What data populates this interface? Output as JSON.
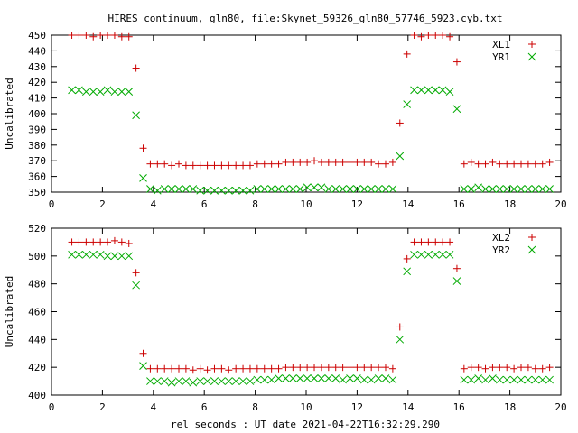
{
  "page_title": "HIRES continuum, gln80, file:Skynet_59326_gln80_57746_5923.cyb.txt",
  "xlabel": "rel seconds : UT date 2021-04-22T16:32:29.290",
  "colors": {
    "red": "#cc0000",
    "green": "#00aa00",
    "axis": "#000000"
  },
  "chart_data": [
    {
      "type": "scatter",
      "title": "HIRES continuum, gln80, file:Skynet_59326_gln80_57746_5923.cyb.txt",
      "xlabel": "",
      "ylabel": "Uncalibrated",
      "xlim": [
        0,
        20
      ],
      "ylim": [
        350,
        450
      ],
      "xticks": [
        "0",
        "2",
        "4",
        "6",
        "8",
        "10",
        "12",
        "14",
        "16",
        "18",
        "20"
      ],
      "yticks": [
        "350",
        "360",
        "370",
        "380",
        "390",
        "400",
        "410",
        "420",
        "430",
        "440",
        "450"
      ],
      "legend": "top-right",
      "grid": false,
      "series": [
        {
          "name": "XL1",
          "marker": "plus",
          "color": "#cc0000",
          "x": [
            0.8,
            1.08,
            1.36,
            1.64,
            1.92,
            2.2,
            2.48,
            2.76,
            3.04,
            3.32,
            3.6,
            3.88,
            4.16,
            4.44,
            4.72,
            5.0,
            5.28,
            5.56,
            5.84,
            6.12,
            6.4,
            6.68,
            6.96,
            7.24,
            7.52,
            7.8,
            8.08,
            8.36,
            8.64,
            8.92,
            9.2,
            9.48,
            9.76,
            10.04,
            10.32,
            10.6,
            10.88,
            11.16,
            11.44,
            11.72,
            12.0,
            12.28,
            12.56,
            12.84,
            13.12,
            13.4,
            13.68,
            13.96,
            14.24,
            14.52,
            14.8,
            15.08,
            15.36,
            15.64,
            15.92,
            16.2,
            16.48,
            16.76,
            17.04,
            17.32,
            17.6,
            17.88,
            18.16,
            18.44,
            18.72,
            19.0,
            19.28,
            19.56
          ],
          "y": [
            450,
            450,
            450,
            449,
            450,
            450,
            450,
            449,
            449,
            429,
            378,
            368,
            368,
            368,
            367,
            368,
            367,
            367,
            367,
            367,
            367,
            367,
            367,
            367,
            367,
            367,
            368,
            368,
            368,
            368,
            369,
            369,
            369,
            369,
            370,
            369,
            369,
            369,
            369,
            369,
            369,
            369,
            369,
            368,
            368,
            369,
            394,
            438,
            450,
            449,
            450,
            450,
            450,
            449,
            433,
            368,
            369,
            368,
            368,
            369,
            368,
            368,
            368,
            368,
            368,
            368,
            368,
            369
          ]
        },
        {
          "name": "YR1",
          "marker": "cross",
          "color": "#00aa00",
          "x": [
            0.8,
            1.08,
            1.36,
            1.64,
            1.92,
            2.2,
            2.48,
            2.76,
            3.04,
            3.32,
            3.6,
            3.88,
            4.16,
            4.44,
            4.72,
            5.0,
            5.28,
            5.56,
            5.84,
            6.12,
            6.4,
            6.68,
            6.96,
            7.24,
            7.52,
            7.8,
            8.08,
            8.36,
            8.64,
            8.92,
            9.2,
            9.48,
            9.76,
            10.04,
            10.32,
            10.6,
            10.88,
            11.16,
            11.44,
            11.72,
            12.0,
            12.28,
            12.56,
            12.84,
            13.12,
            13.4,
            13.68,
            13.96,
            14.24,
            14.52,
            14.8,
            15.08,
            15.36,
            15.64,
            15.92,
            16.2,
            16.48,
            16.76,
            17.04,
            17.32,
            17.6,
            17.88,
            18.16,
            18.44,
            18.72,
            19.0,
            19.28,
            19.56
          ],
          "y": [
            415,
            415,
            414,
            414,
            414,
            415,
            414,
            414,
            414,
            399,
            359,
            352,
            351,
            352,
            352,
            352,
            352,
            352,
            351,
            351,
            351,
            351,
            351,
            351,
            351,
            351,
            352,
            352,
            352,
            352,
            352,
            352,
            352,
            353,
            353,
            353,
            352,
            352,
            352,
            352,
            352,
            352,
            352,
            352,
            352,
            352,
            373,
            406,
            415,
            415,
            415,
            415,
            415,
            414,
            403,
            352,
            352,
            353,
            352,
            352,
            352,
            352,
            352,
            352,
            352,
            352,
            352,
            352
          ]
        }
      ]
    },
    {
      "type": "scatter",
      "title": "",
      "xlabel": "rel seconds : UT date 2021-04-22T16:32:29.290",
      "ylabel": "Uncalibrated",
      "xlim": [
        0,
        20
      ],
      "ylim": [
        400,
        520
      ],
      "xticks": [
        "0",
        "2",
        "4",
        "6",
        "8",
        "10",
        "12",
        "14",
        "16",
        "18",
        "20"
      ],
      "yticks": [
        "400",
        "420",
        "440",
        "460",
        "480",
        "500",
        "520"
      ],
      "legend": "top-right",
      "grid": false,
      "series": [
        {
          "name": "XL2",
          "marker": "plus",
          "color": "#cc0000",
          "x": [
            0.8,
            1.08,
            1.36,
            1.64,
            1.92,
            2.2,
            2.48,
            2.76,
            3.04,
            3.32,
            3.6,
            3.88,
            4.16,
            4.44,
            4.72,
            5.0,
            5.28,
            5.56,
            5.84,
            6.12,
            6.4,
            6.68,
            6.96,
            7.24,
            7.52,
            7.8,
            8.08,
            8.36,
            8.64,
            8.92,
            9.2,
            9.48,
            9.76,
            10.04,
            10.32,
            10.6,
            10.88,
            11.16,
            11.44,
            11.72,
            12.0,
            12.28,
            12.56,
            12.84,
            13.12,
            13.4,
            13.68,
            13.96,
            14.24,
            14.52,
            14.8,
            15.08,
            15.36,
            15.64,
            15.92,
            16.2,
            16.48,
            16.76,
            17.04,
            17.32,
            17.6,
            17.88,
            18.16,
            18.44,
            18.72,
            19.0,
            19.28,
            19.56
          ],
          "y": [
            510,
            510,
            510,
            510,
            510,
            510,
            511,
            510,
            509,
            488,
            430,
            419,
            419,
            419,
            419,
            419,
            419,
            418,
            419,
            418,
            419,
            419,
            418,
            419,
            419,
            419,
            419,
            419,
            419,
            419,
            420,
            420,
            420,
            420,
            420,
            420,
            420,
            420,
            420,
            420,
            420,
            420,
            420,
            420,
            420,
            419,
            449,
            498,
            510,
            510,
            510,
            510,
            510,
            510,
            491,
            419,
            420,
            420,
            419,
            420,
            420,
            420,
            419,
            420,
            420,
            419,
            419,
            420
          ]
        },
        {
          "name": "YR2",
          "marker": "cross",
          "color": "#00aa00",
          "x": [
            0.8,
            1.08,
            1.36,
            1.64,
            1.92,
            2.2,
            2.48,
            2.76,
            3.04,
            3.32,
            3.6,
            3.88,
            4.16,
            4.44,
            4.72,
            5.0,
            5.28,
            5.56,
            5.84,
            6.12,
            6.4,
            6.68,
            6.96,
            7.24,
            7.52,
            7.8,
            8.08,
            8.36,
            8.64,
            8.92,
            9.2,
            9.48,
            9.76,
            10.04,
            10.32,
            10.6,
            10.88,
            11.16,
            11.44,
            11.72,
            12.0,
            12.28,
            12.56,
            12.84,
            13.12,
            13.4,
            13.68,
            13.96,
            14.24,
            14.52,
            14.8,
            15.08,
            15.36,
            15.64,
            15.92,
            16.2,
            16.48,
            16.76,
            17.04,
            17.32,
            17.6,
            17.88,
            18.16,
            18.44,
            18.72,
            19.0,
            19.28,
            19.56
          ],
          "y": [
            501,
            501,
            501,
            501,
            501,
            500,
            500,
            500,
            500,
            479,
            421,
            410,
            410,
            410,
            409,
            410,
            410,
            409,
            410,
            410,
            410,
            410,
            410,
            410,
            410,
            410,
            411,
            411,
            411,
            412,
            412,
            412,
            412,
            412,
            412,
            412,
            412,
            412,
            411,
            412,
            412,
            411,
            411,
            412,
            412,
            411,
            440,
            489,
            501,
            501,
            501,
            501,
            501,
            501,
            482,
            411,
            411,
            412,
            411,
            412,
            411,
            411,
            411,
            411,
            411,
            411,
            411,
            411
          ]
        }
      ]
    }
  ]
}
